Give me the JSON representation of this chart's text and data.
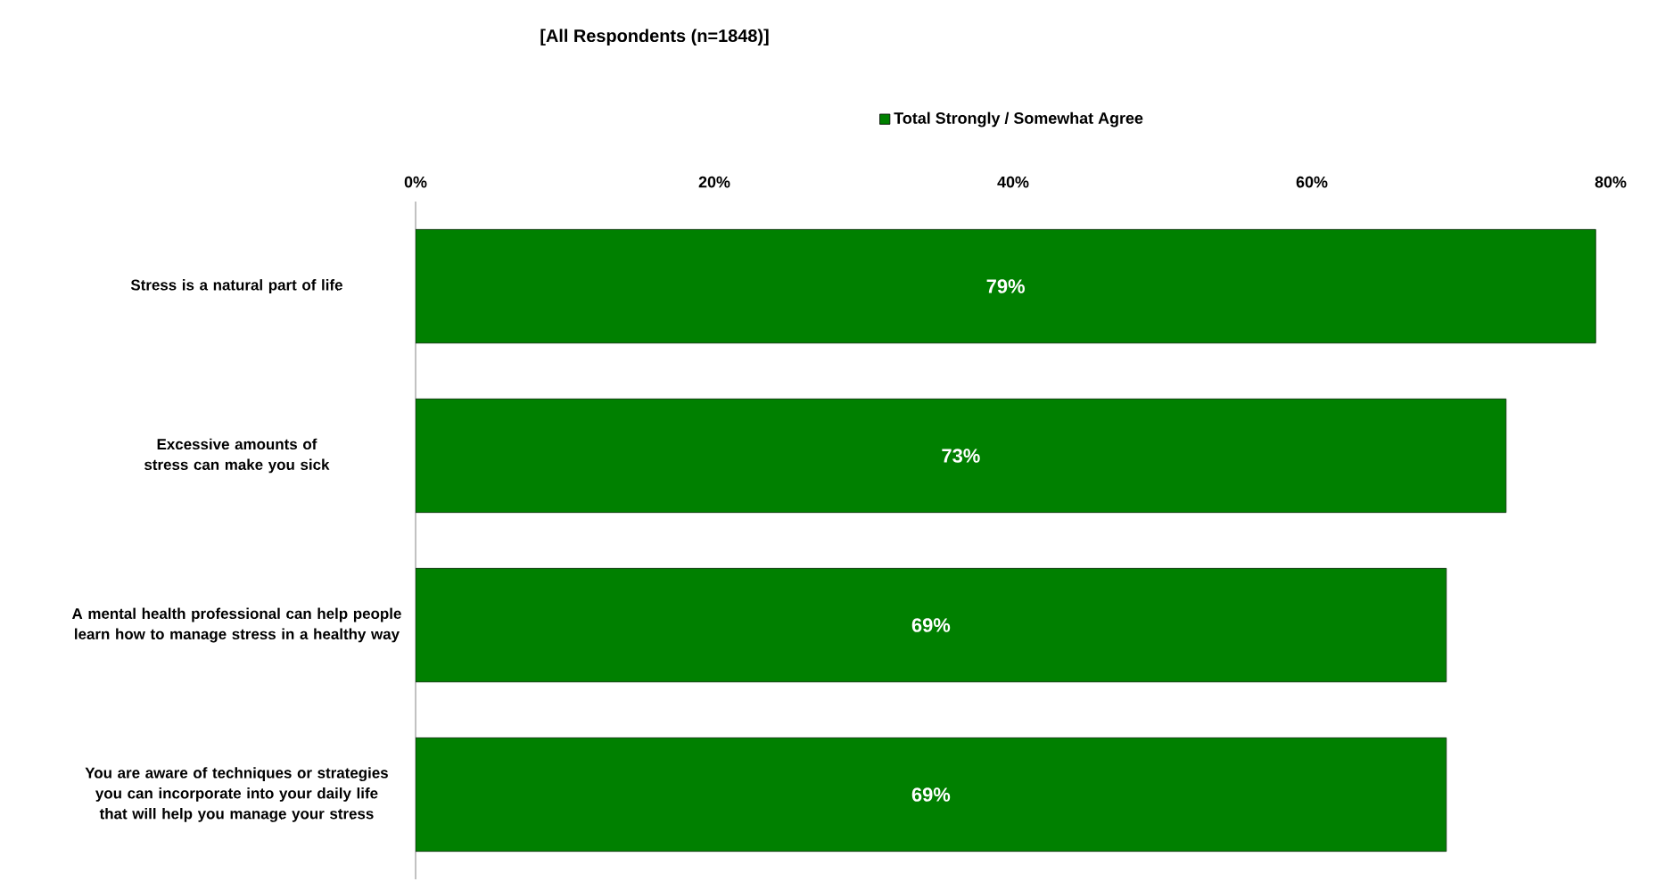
{
  "chart_data": {
    "type": "bar",
    "orientation": "horizontal",
    "title": "[All Respondents (n=1848)]",
    "categories": [
      "Stress is a natural part of life",
      "Excessive amounts of stress can make you sick",
      "A mental health professional can help people learn how to manage stress in a healthy way",
      "You are aware of techniques or strategies you can incorporate into your daily life that will help you manage your stress"
    ],
    "series": [
      {
        "name": "Total Strongly / Somewhat Agree",
        "color": "#008000",
        "values": [
          79,
          73,
          69,
          69
        ],
        "value_labels": [
          "79%",
          "73%",
          "69%",
          "69%"
        ]
      }
    ],
    "xlim": [
      0,
      80
    ],
    "xticks": [
      {
        "value": 0,
        "label": "0%"
      },
      {
        "value": 20,
        "label": "20%"
      },
      {
        "value": 40,
        "label": "40%"
      },
      {
        "value": 60,
        "label": "60%"
      },
      {
        "value": 80,
        "label": "80%"
      }
    ],
    "legend": "top",
    "grid": false
  }
}
